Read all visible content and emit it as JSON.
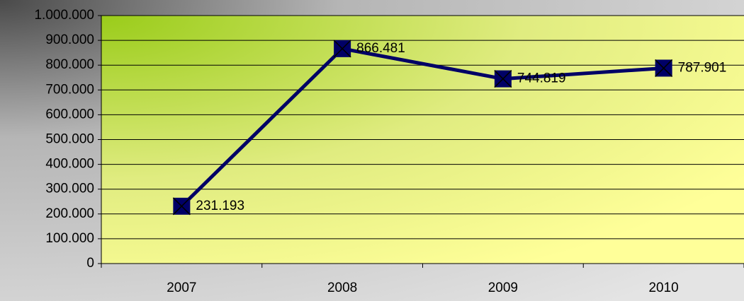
{
  "chart_data": {
    "type": "line",
    "categories": [
      "2007",
      "2008",
      "2009",
      "2010"
    ],
    "series": [
      {
        "name": null,
        "color": "#000066",
        "values": [
          231193,
          866481,
          744819,
          787901
        ],
        "value_labels": [
          "231.193",
          "866.481",
          "744.819",
          "787.901"
        ]
      }
    ],
    "ylim": [
      0,
      1000000
    ],
    "yticks": [
      0,
      {
        "value": 100000,
        "label": "100.000"
      },
      {
        "value": 200000,
        "label": "200.000"
      },
      {
        "value": 300000,
        "label": "300.000"
      },
      {
        "value": 400000,
        "label": "400.000"
      },
      {
        "value": 500000,
        "label": "500.000"
      },
      {
        "value": 600000,
        "label": "600.000"
      },
      {
        "value": 700000,
        "label": "700.000"
      },
      {
        "value": 800000,
        "label": "800.000"
      },
      {
        "value": 900000,
        "label": "900.000"
      },
      {
        "value": 1000000,
        "label": "1.000.000"
      }
    ],
    "grid": true
  }
}
